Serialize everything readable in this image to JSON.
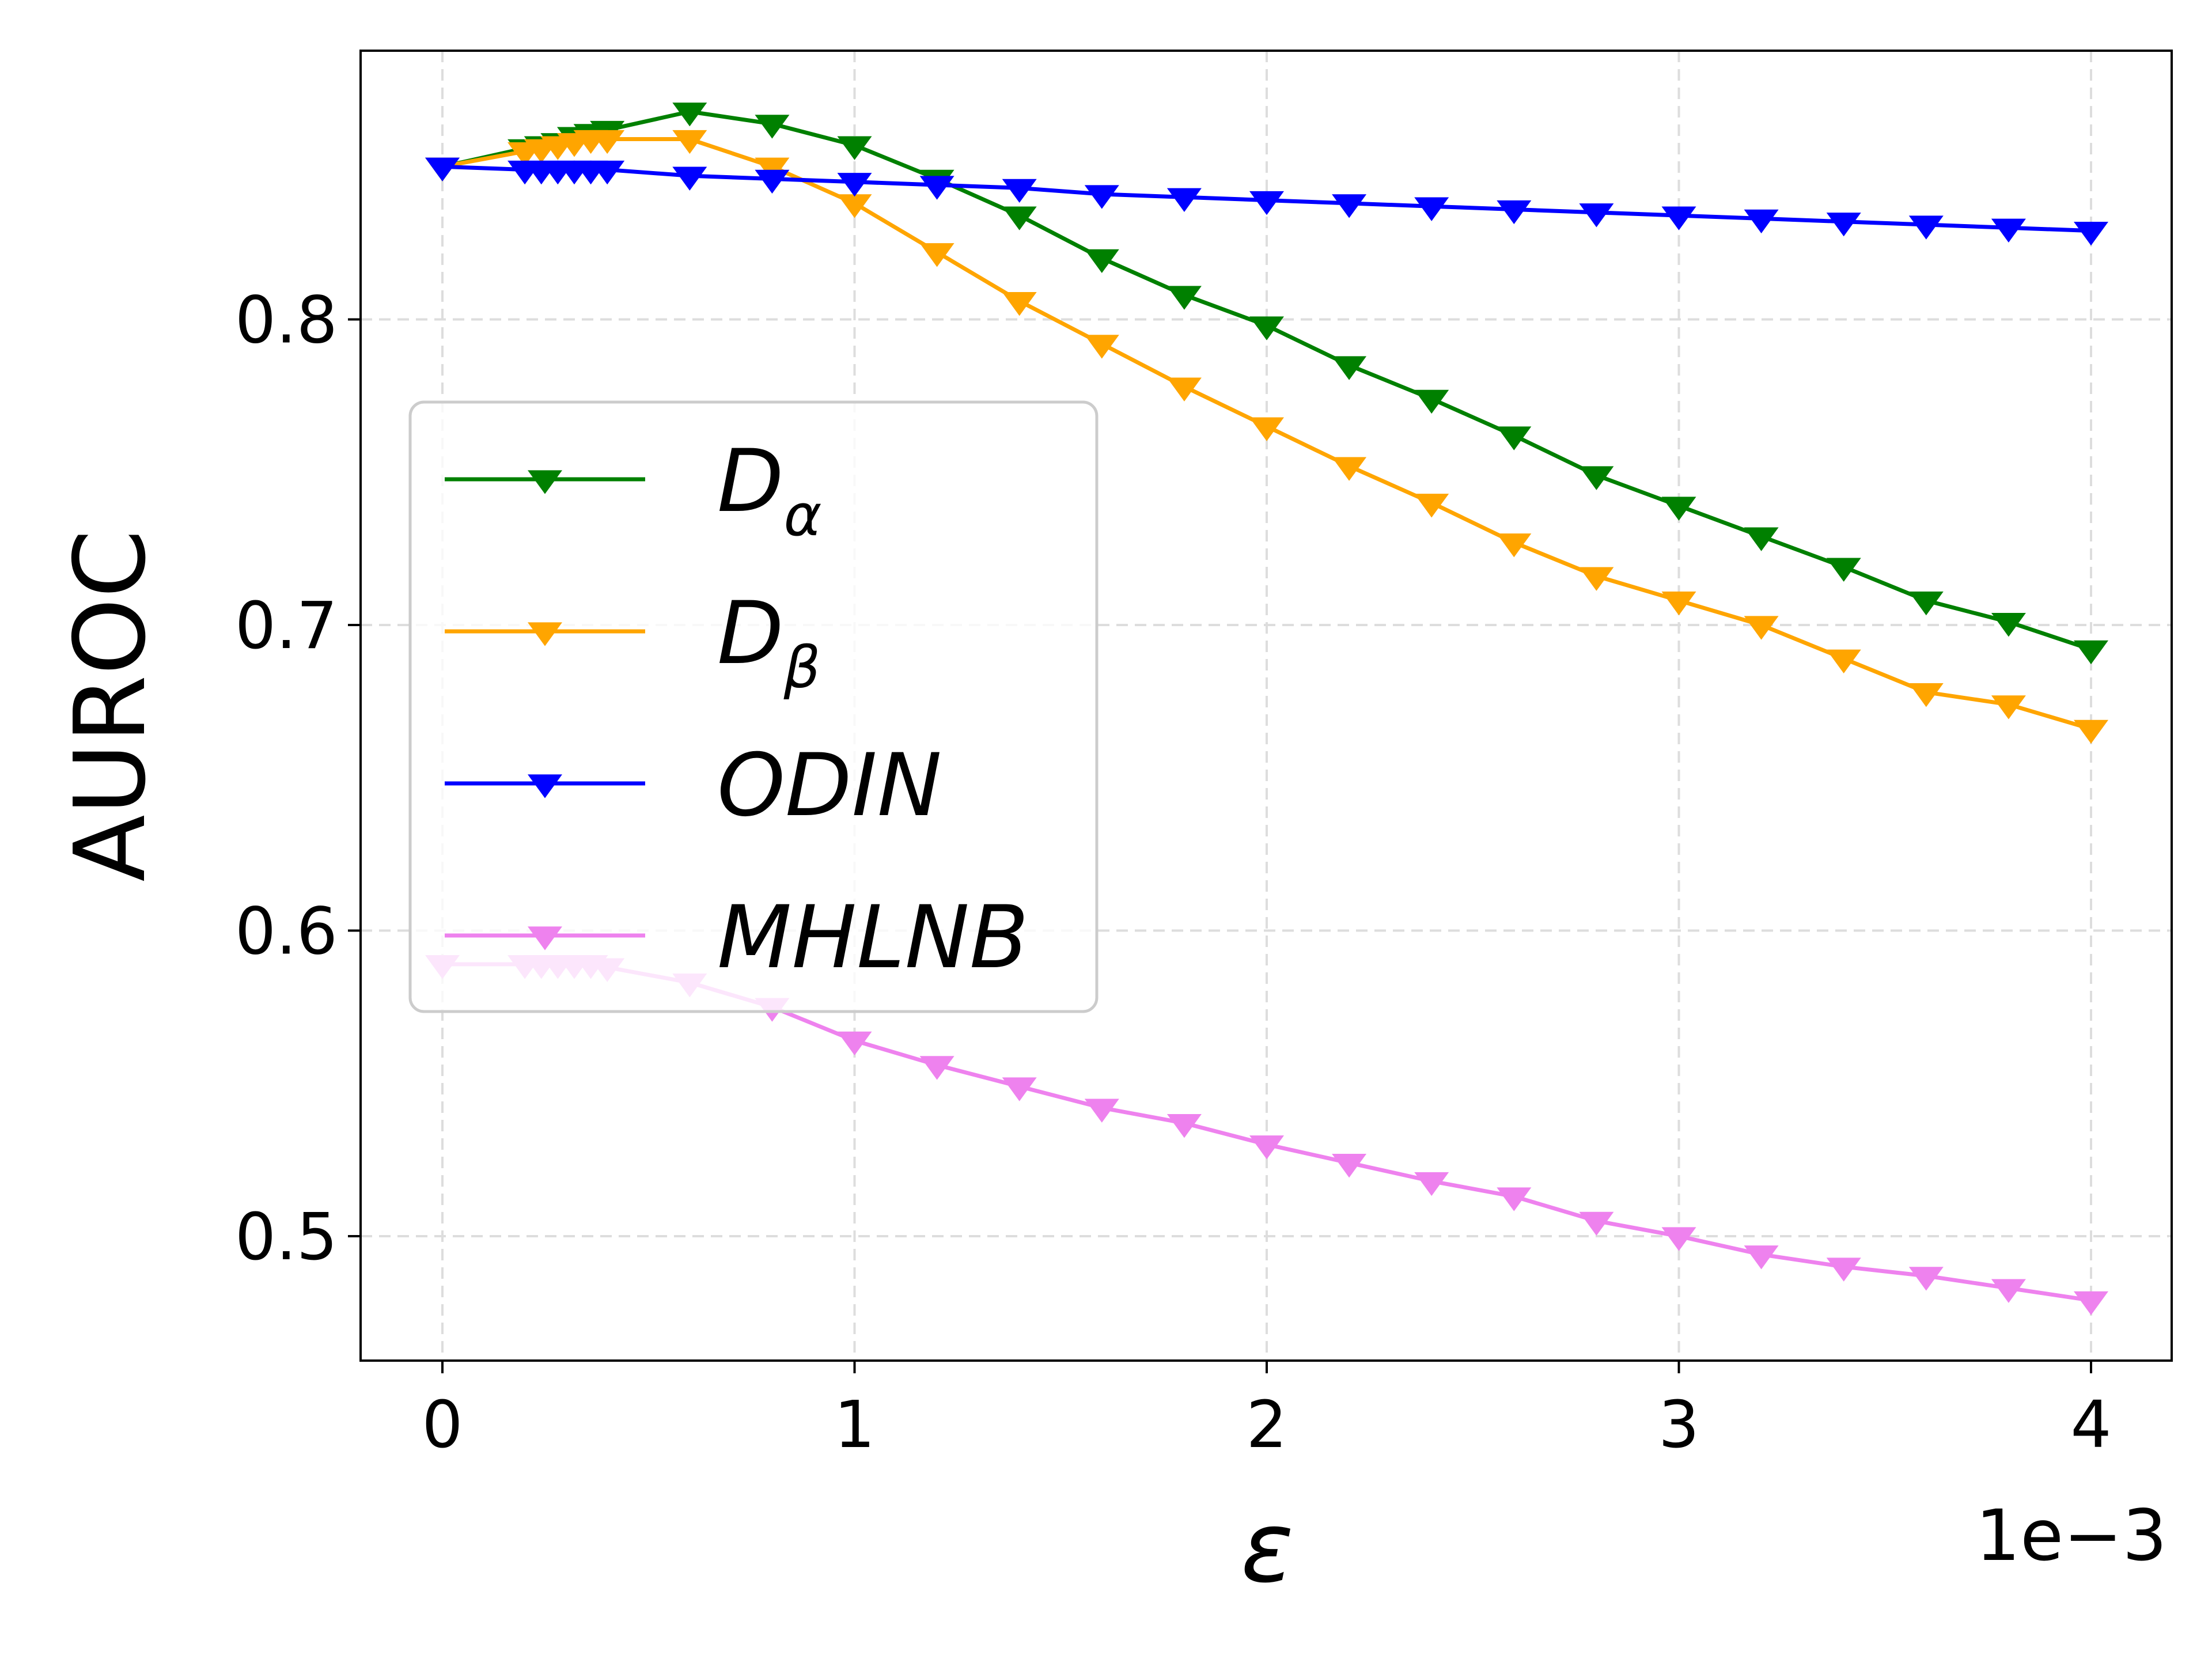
{
  "chart_data": {
    "type": "line",
    "title": "",
    "xlabel": "ε",
    "ylabel": "AUROC",
    "x_offset_label": "1e−3",
    "xlim": [
      -0.2,
      4.2
    ],
    "ylim": [
      0.46,
      0.888
    ],
    "x_ticks": [
      0,
      1,
      2,
      3,
      4
    ],
    "x_tick_labels": [
      "0",
      "1",
      "2",
      "3",
      "4"
    ],
    "y_ticks": [
      0.5,
      0.6,
      0.7,
      0.8
    ],
    "y_tick_labels": [
      "0.5",
      "0.6",
      "0.7",
      "0.8"
    ],
    "grid": true,
    "legend_position": "center-left",
    "x": [
      0,
      0.2,
      0.24,
      0.28,
      0.32,
      0.36,
      0.4,
      0.6,
      0.8,
      1.0,
      1.2,
      1.4,
      1.6,
      1.8,
      2.0,
      2.2,
      2.4,
      2.6,
      2.8,
      3.0,
      3.2,
      3.4,
      3.6,
      3.8,
      4.0
    ],
    "series": [
      {
        "name": "D",
        "subscript": "α",
        "color": "#008000",
        "values": [
          0.85,
          0.856,
          0.857,
          0.858,
          0.86,
          0.861,
          0.862,
          0.868,
          0.864,
          0.857,
          0.846,
          0.834,
          0.82,
          0.808,
          0.798,
          0.785,
          0.774,
          0.762,
          0.749,
          0.739,
          0.729,
          0.719,
          0.708,
          0.701,
          0.692
        ]
      },
      {
        "name": "D",
        "subscript": "β",
        "color": "#FFA500",
        "values": [
          0.85,
          0.855,
          0.856,
          0.857,
          0.858,
          0.859,
          0.859,
          0.859,
          0.85,
          0.838,
          0.822,
          0.806,
          0.792,
          0.778,
          0.765,
          0.752,
          0.74,
          0.727,
          0.716,
          0.708,
          0.7,
          0.689,
          0.678,
          0.674,
          0.666
        ]
      },
      {
        "name": "ODIN",
        "subscript": "",
        "color": "#0000FF",
        "values": [
          0.85,
          0.849,
          0.849,
          0.849,
          0.849,
          0.849,
          0.849,
          0.847,
          0.846,
          0.845,
          0.844,
          0.843,
          0.841,
          0.84,
          0.839,
          0.838,
          0.837,
          0.836,
          0.835,
          0.834,
          0.833,
          0.832,
          0.831,
          0.83,
          0.829
        ]
      },
      {
        "name": "MHLNB",
        "subscript": "",
        "color": "#EE82EE",
        "values": [
          0.589,
          0.589,
          0.589,
          0.589,
          0.589,
          0.589,
          0.588,
          0.583,
          0.575,
          0.564,
          0.556,
          0.549,
          0.542,
          0.537,
          0.53,
          0.524,
          0.518,
          0.513,
          0.505,
          0.5,
          0.494,
          0.49,
          0.487,
          0.483,
          0.479
        ]
      }
    ]
  }
}
